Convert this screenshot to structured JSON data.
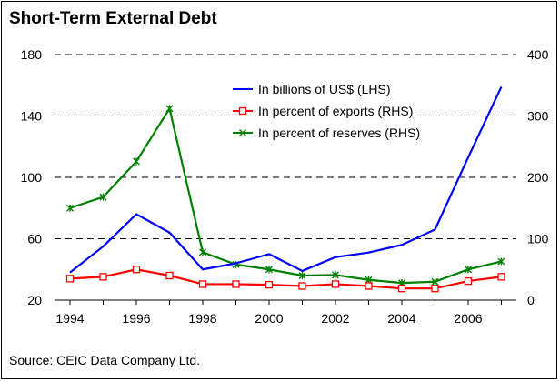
{
  "title": "Short-Term External Debt",
  "source": "Source: CEIC Data Company Ltd.",
  "colors": {
    "billions": "#0000ff",
    "exports": "#ff0000",
    "reserves": "#008000",
    "grid": "#000000"
  },
  "chart_data": {
    "type": "line",
    "title": "Short-Term External Debt",
    "x": [
      1994,
      1995,
      1996,
      1997,
      1998,
      1999,
      2000,
      2001,
      2002,
      2003,
      2004,
      2005,
      2006,
      2007
    ],
    "x_tick_labels": [
      "1994",
      "1996",
      "1998",
      "2000",
      "2002",
      "2004",
      "2006"
    ],
    "left_axis": {
      "ylim": [
        20,
        180
      ],
      "ticks": [
        20,
        60,
        100,
        140,
        180
      ]
    },
    "right_axis": {
      "ylim": [
        0,
        400
      ],
      "ticks": [
        0,
        100,
        200,
        300,
        400
      ]
    },
    "grid": "horizontal dashed",
    "legend_position": "top-right",
    "series": [
      {
        "name": "In billions of US$ (LHS)",
        "axis": "left",
        "color": "#0000ff",
        "marker": "none",
        "values": [
          38,
          55,
          76,
          64,
          40,
          44,
          50,
          39,
          48,
          51,
          56,
          66,
          113,
          159
        ]
      },
      {
        "name": "In percent of exports (RHS)",
        "axis": "right",
        "color": "#ff0000",
        "marker": "square",
        "values": [
          35,
          38,
          50,
          40,
          26,
          26,
          25,
          23,
          26,
          23,
          19,
          19,
          31,
          38
        ]
      },
      {
        "name": "In percent of reserves (RHS)",
        "axis": "right",
        "color": "#008000",
        "marker": "x",
        "values": [
          150,
          168,
          226,
          312,
          78,
          58,
          50,
          40,
          41,
          33,
          28,
          30,
          50,
          63
        ]
      }
    ]
  }
}
